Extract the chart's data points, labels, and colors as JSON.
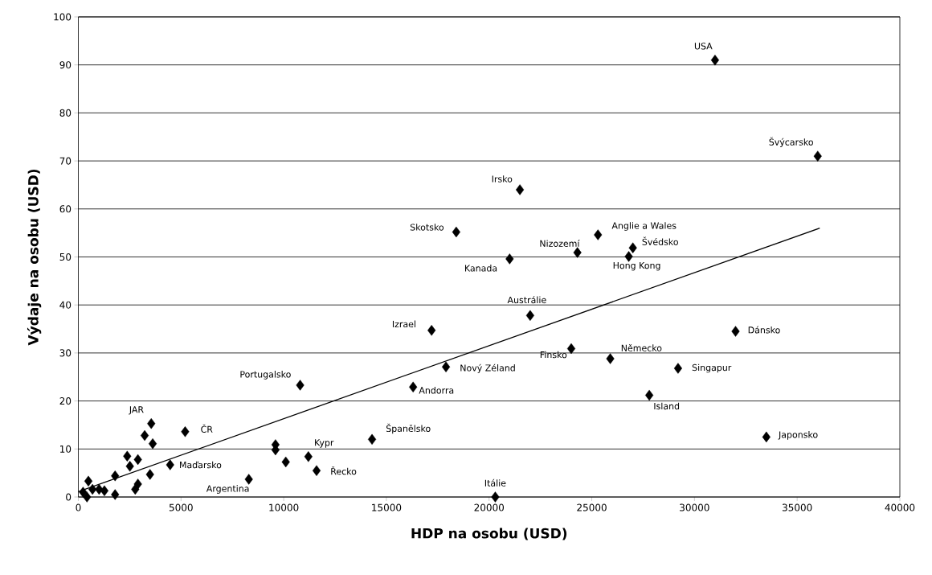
{
  "chart_data": {
    "type": "scatter",
    "xlabel": "HDP na osobu (USD)",
    "ylabel": "Výdaje na osobu (USD)",
    "xlim": [
      0,
      40000
    ],
    "ylim": [
      0,
      100
    ],
    "xticks": [
      0,
      5000,
      10000,
      15000,
      20000,
      25000,
      30000,
      35000,
      40000
    ],
    "yticks": [
      0,
      10,
      20,
      30,
      40,
      50,
      60,
      70,
      80,
      90,
      100
    ],
    "grid": "y",
    "marker": "diamond",
    "series": [
      {
        "color": "#000000",
        "x": [
          31000,
          36000,
          32000,
          33500,
          21500,
          20300,
          14300,
          11600,
          11200,
          9600,
          9600,
          10100,
          8300,
          5200,
          3550,
          3230,
          3620,
          2380,
          2900,
          2510,
          4470,
          3490,
          2900,
          2770,
          1790,
          1790,
          1270,
          490,
          690,
          230,
          420,
          1010,
          18400,
          24300,
          25300,
          27000,
          26800,
          21000,
          22000,
          17200,
          24000,
          25900,
          29200,
          27800,
          17900,
          16300,
          10800
        ],
        "values": [
          91,
          71,
          34.5,
          12.5,
          64,
          0,
          12,
          5.5,
          8.4,
          10.9,
          9.8,
          7.3,
          3.7,
          13.6,
          15.3,
          12.8,
          11.1,
          8.5,
          7.8,
          6.4,
          6.7,
          4.7,
          2.7,
          1.6,
          4.4,
          0.5,
          1.3,
          3.3,
          1.6,
          1,
          0,
          1.6,
          55.2,
          50.9,
          54.6,
          51.9,
          50.1,
          49.6,
          37.8,
          34.7,
          30.9,
          28.8,
          26.8,
          21.2,
          27.1,
          22.9,
          23.3
        ]
      },
      {
        "type": "line",
        "color": "#000000",
        "marker": "none",
        "x": [
          0,
          36100
        ],
        "values": [
          1.1,
          56
        ]
      }
    ],
    "annotations": [
      {
        "text": "USA",
        "x": 31000,
        "y": 91
      },
      {
        "text": "Švýcarsko",
        "x": 36000,
        "y": 71
      },
      {
        "text": "Dánsko",
        "x": 32000,
        "y": 34.5
      },
      {
        "text": "Japonsko",
        "x": 33500,
        "y": 12.5
      },
      {
        "text": "Irsko",
        "x": 21500,
        "y": 64
      },
      {
        "text": "Itálie",
        "x": 20300,
        "y": 0
      },
      {
        "text": "Španělsko",
        "x": 14300,
        "y": 12
      },
      {
        "text": "Řecko",
        "x": 11600,
        "y": 5.5
      },
      {
        "text": "Kypr",
        "x": 11200,
        "y": 8.4
      },
      {
        "text": "Argentina",
        "x": 8300,
        "y": 3.7
      },
      {
        "text": "ČR",
        "x": 5200,
        "y": 13.6
      },
      {
        "text": "JAR",
        "x": 3550,
        "y": 15.3
      },
      {
        "text": "Maďarsko",
        "x": 4470,
        "y": 6.7
      },
      {
        "text": "Skotsko",
        "x": 18400,
        "y": 55.2
      },
      {
        "text": "Nizozemí",
        "x": 24300,
        "y": 50.9
      },
      {
        "text": "Anglie a Wales",
        "x": 25300,
        "y": 54.6
      },
      {
        "text": "Švédsko",
        "x": 27000,
        "y": 51.9
      },
      {
        "text": "Hong Kong",
        "x": 26800,
        "y": 50.1
      },
      {
        "text": "Kanada",
        "x": 21000,
        "y": 49.6
      },
      {
        "text": "Austrálie",
        "x": 22000,
        "y": 37.8
      },
      {
        "text": "Izrael",
        "x": 17200,
        "y": 34.7
      },
      {
        "text": "Finsko",
        "x": 24000,
        "y": 30.9
      },
      {
        "text": "Německo",
        "x": 25900,
        "y": 28.8
      },
      {
        "text": "Singapur",
        "x": 29200,
        "y": 26.8
      },
      {
        "text": "Island",
        "x": 27800,
        "y": 21.2
      },
      {
        "text": "Nový Zéland",
        "x": 17900,
        "y": 27.1
      },
      {
        "text": "Andorra",
        "x": 16300,
        "y": 22.9
      },
      {
        "text": "Portugalsko",
        "x": 10800,
        "y": 23.3
      }
    ]
  }
}
